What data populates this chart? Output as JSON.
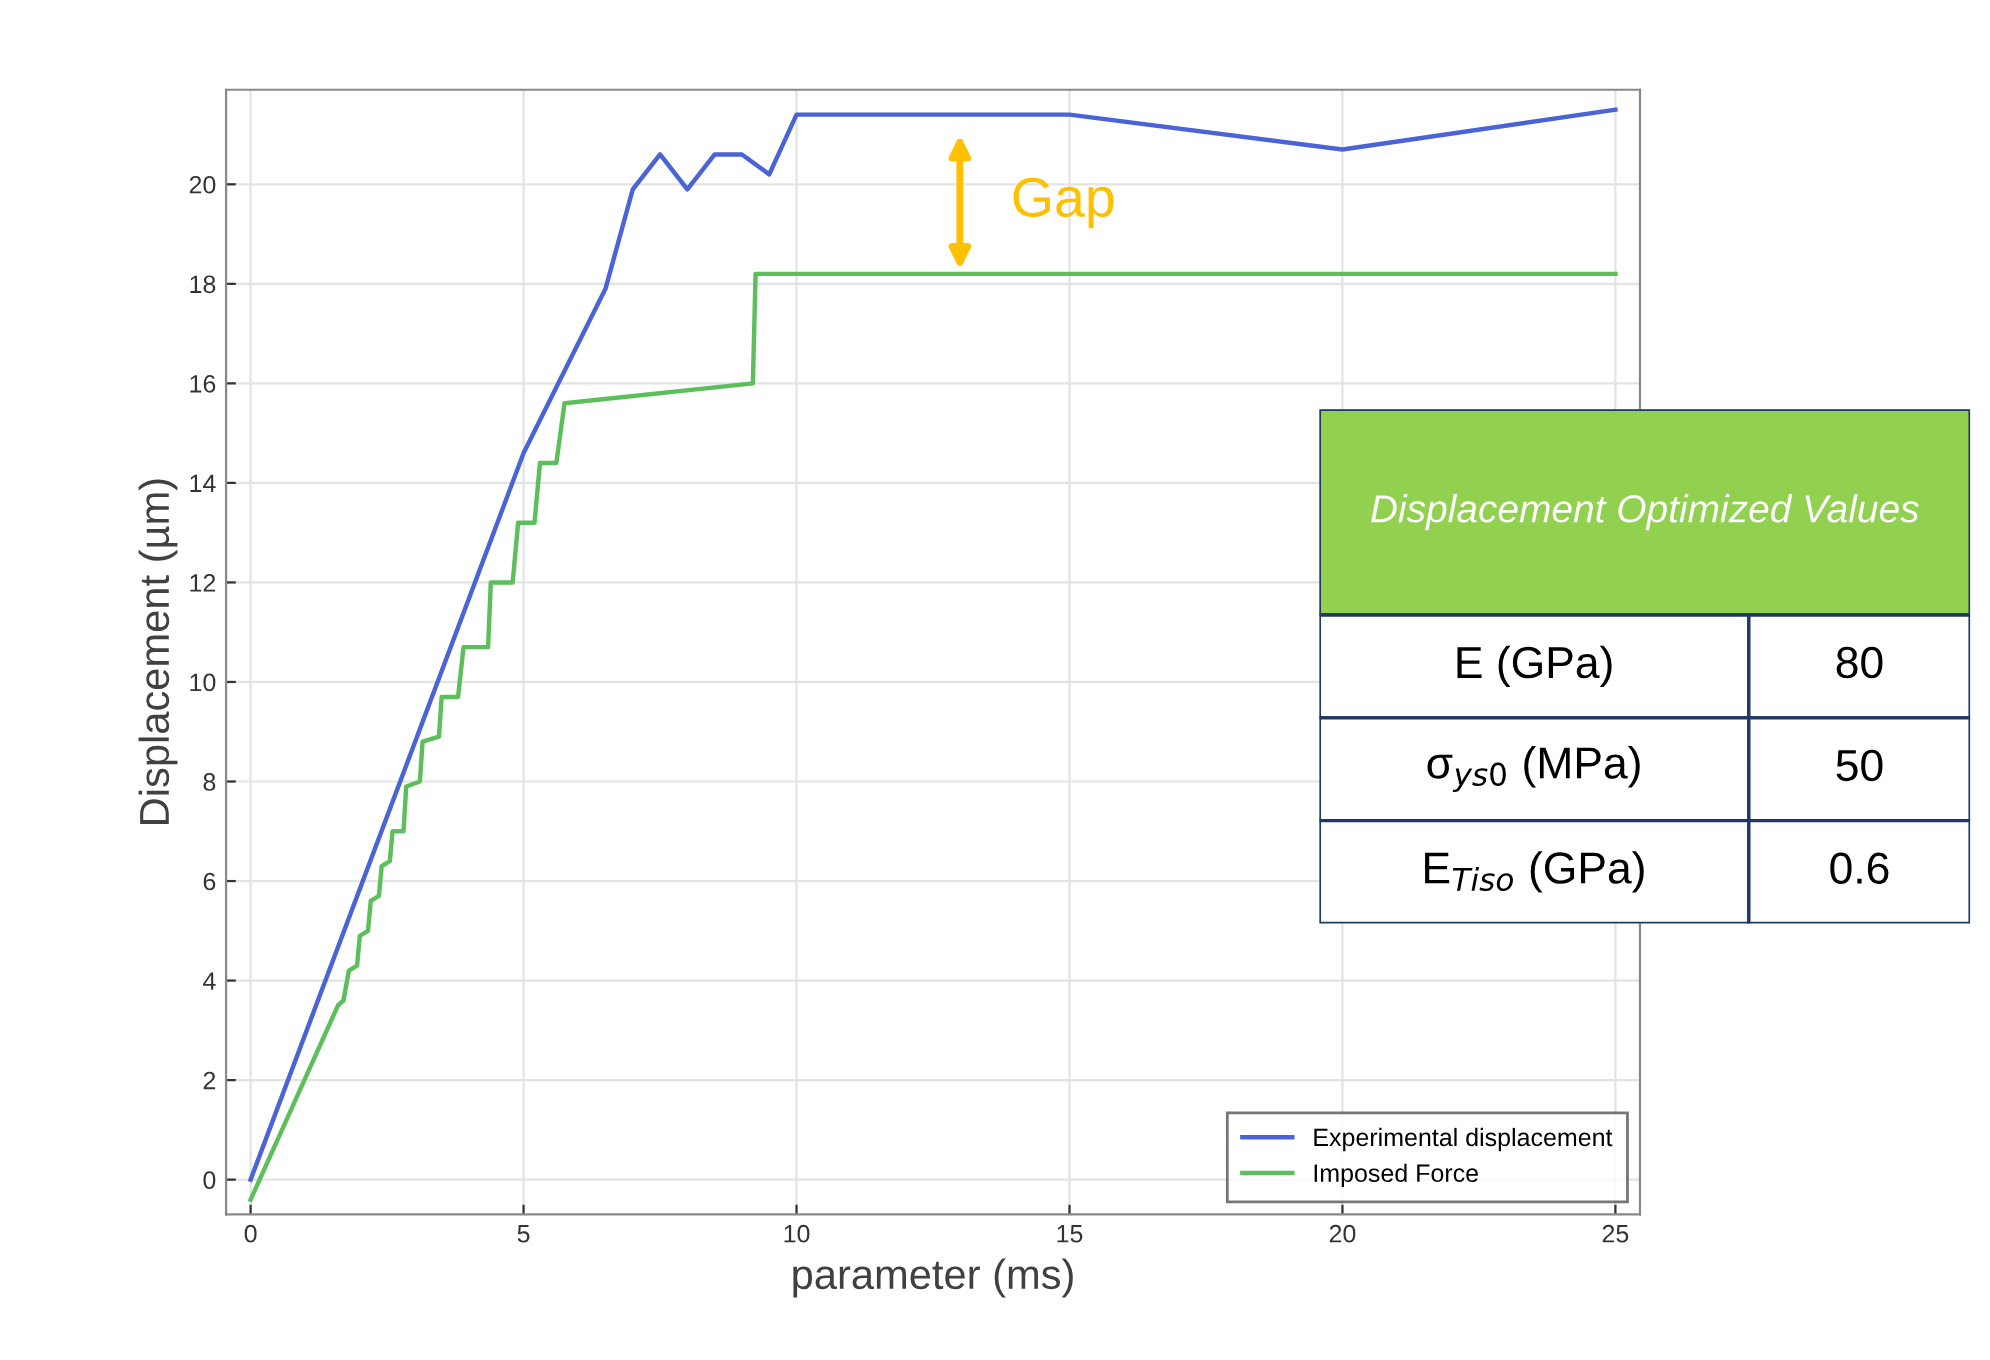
{
  "chart_data": [
    {
      "type": "line",
      "xlabel": "parameter (ms)",
      "ylabel": "Displacement (µm)",
      "xlim": [
        -0.45,
        25.45
      ],
      "xticks": [
        0,
        5,
        10,
        15,
        20,
        25
      ],
      "ylim": [
        -0.7,
        21.9
      ],
      "yticks": [
        0,
        2,
        4,
        6,
        8,
        10,
        12,
        14,
        16,
        18,
        20
      ],
      "grid": true,
      "legend": "bottom right",
      "line_style": "solid",
      "marker": "none",
      "series": [
        {
          "name": "Experimental displacement",
          "color": "#4a63d6",
          "x": [
            0,
            5,
            6.5,
            7,
            7.5,
            8,
            8.5,
            9,
            9.5,
            10,
            15,
            20,
            25
          ],
          "values": [
            0,
            14.6,
            17.9,
            19.9,
            20.6,
            19.9,
            20.6,
            20.6,
            20.2,
            21.4,
            21.4,
            20.7,
            21.5
          ]
        },
        {
          "name": "Imposed Force",
          "color": "#5cbf5c",
          "x": [
            0,
            1.6,
            1.7,
            1.8,
            1.95,
            2.0,
            2.15,
            2.2,
            2.35,
            2.4,
            2.55,
            2.6,
            2.8,
            2.85,
            3.1,
            3.15,
            3.45,
            3.5,
            3.8,
            3.9,
            4.35,
            4.4,
            4.8,
            4.9,
            5.2,
            5.3,
            5.6,
            5.75,
            9.2,
            9.25,
            25
          ],
          "values": [
            -0.4,
            3.5,
            3.6,
            4.2,
            4.3,
            4.9,
            5.0,
            5.6,
            5.7,
            6.3,
            6.4,
            7.0,
            7.0,
            7.9,
            8.0,
            8.8,
            8.9,
            9.7,
            9.7,
            10.7,
            10.7,
            12.0,
            12.0,
            13.2,
            13.2,
            14.4,
            14.4,
            15.6,
            16.0,
            18.2,
            18.2
          ]
        }
      ],
      "annotations": [
        "Gap"
      ]
    },
    {
      "type": "other",
      "title": "Displacement Optimized Values",
      "annotations": [
        "E (GPa)",
        "80",
        "σ$_{ys0}$ (MPa)",
        "50",
        "E$_{Tiso}$ (GPa)",
        "0.6"
      ]
    }
  ]
}
